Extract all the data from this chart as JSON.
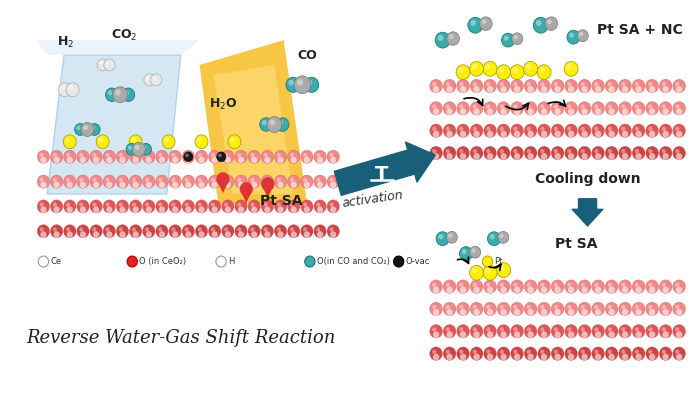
{
  "bg_color": "#ffffff",
  "title": "Reverse Water-Gas Shift Reaction",
  "title_fontsize": 13,
  "title_color": "#222222",
  "legend_items": [
    {
      "label": "Ce",
      "facecolor": "#ffffff",
      "edgecolor": "#999999"
    },
    {
      "label": "O (in CeO₂)",
      "facecolor": "#e82020",
      "edgecolor": "#aa0000"
    },
    {
      "label": "H",
      "facecolor": "#ffffff",
      "edgecolor": "#999999"
    },
    {
      "label": "O(in CO and CO₂)",
      "facecolor": "#3aacac",
      "edgecolor": "#207070"
    },
    {
      "label": "O-vac",
      "facecolor": "#111111",
      "edgecolor": "#000000"
    },
    {
      "label": "Pt",
      "facecolor": "#ffee00",
      "edgecolor": "#bbaa00"
    }
  ],
  "slab_colors": {
    "top_sphere": "#f08888",
    "mid_sphere": "#dd5555",
    "bot_sphere": "#cc4444",
    "white_stripe": "#ffffff",
    "yellow_sphere": "#ffee00",
    "dark_sphere": "#1a1a1a",
    "teal_sphere": "#3aacac",
    "grey_sphere": "#aaaaaa"
  },
  "arrow_color": "#1a5f7a",
  "cooling_arrow_color": "#1a5f7a"
}
